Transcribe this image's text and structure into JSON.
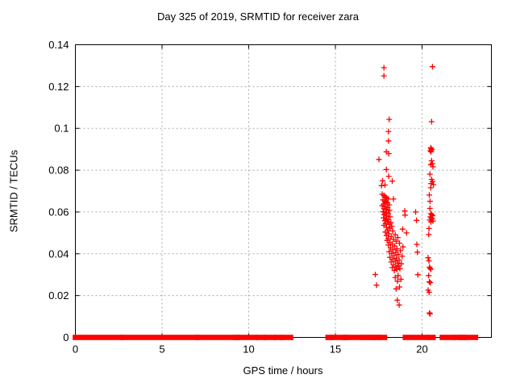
{
  "chart_data": {
    "type": "scatter",
    "title": "Day 325 of 2019, SRMTID for receiver zara",
    "xlabel": "GPS time / hours",
    "ylabel": "SRMTID / TECUs",
    "xlim": [
      0,
      24
    ],
    "ylim": [
      0,
      0.14
    ],
    "xticks": [
      0,
      5,
      10,
      15,
      20
    ],
    "xtick_labels": [
      "0",
      "5",
      "10",
      "15",
      "20"
    ],
    "yticks": [
      0,
      0.02,
      0.04,
      0.06,
      0.08,
      0.1,
      0.12,
      0.14
    ],
    "ytick_labels": [
      "0",
      "0.02",
      "0.04",
      "0.06",
      "0.08",
      "0.1",
      "0.12",
      "0.14"
    ],
    "grid": true,
    "legend": "none",
    "marker": "plus",
    "marker_color": "#ff0000",
    "grid_color": "#ababab",
    "border_color": "#000000",
    "baseline_value": 0,
    "baseline_segments_hours": [
      [
        0.0,
        2.66
      ],
      [
        2.76,
        6.98
      ],
      [
        7.08,
        9.17
      ],
      [
        9.25,
        9.36
      ],
      [
        9.49,
        10.42
      ],
      [
        10.55,
        10.88
      ],
      [
        11.02,
        11.44
      ],
      [
        11.58,
        11.83
      ],
      [
        11.94,
        12.41
      ],
      [
        14.58,
        14.72
      ],
      [
        14.83,
        15.45
      ],
      [
        15.52,
        15.6
      ],
      [
        15.63,
        16.53
      ],
      [
        16.63,
        16.78
      ],
      [
        16.88,
        17.05
      ],
      [
        17.16,
        17.28
      ],
      [
        17.37,
        17.53
      ],
      [
        17.62,
        17.83
      ],
      [
        19.04,
        20.32
      ],
      [
        20.45,
        20.63
      ],
      [
        21.17,
        21.79
      ],
      [
        21.95,
        22.18
      ],
      [
        22.28,
        22.42
      ],
      [
        22.49,
        23.08
      ]
    ],
    "points": [
      [
        17.8,
        0.129
      ],
      [
        17.8,
        0.1251
      ],
      [
        18.1,
        0.1043
      ],
      [
        18.06,
        0.0985
      ],
      [
        18.06,
        0.094
      ],
      [
        17.94,
        0.0888
      ],
      [
        18.08,
        0.0879
      ],
      [
        17.51,
        0.0851
      ],
      [
        17.94,
        0.0803
      ],
      [
        18.08,
        0.0771
      ],
      [
        18.28,
        0.0748
      ],
      [
        17.72,
        0.0749
      ],
      [
        17.86,
        0.0729
      ],
      [
        17.66,
        0.0726
      ],
      [
        17.7,
        0.0685
      ],
      [
        17.8,
        0.0679
      ],
      [
        17.88,
        0.0673
      ],
      [
        17.96,
        0.0668
      ],
      [
        18.04,
        0.0662
      ],
      [
        18.35,
        0.0662
      ],
      [
        17.74,
        0.0658
      ],
      [
        17.84,
        0.0652
      ],
      [
        17.92,
        0.0647
      ],
      [
        18.0,
        0.0643
      ],
      [
        17.78,
        0.0638
      ],
      [
        18.1,
        0.0634
      ],
      [
        17.7,
        0.063
      ],
      [
        17.88,
        0.0626
      ],
      [
        18.02,
        0.0621
      ],
      [
        17.8,
        0.0616
      ],
      [
        17.95,
        0.0612
      ],
      [
        18.12,
        0.0608
      ],
      [
        19.0,
        0.0605
      ],
      [
        17.75,
        0.0601
      ],
      [
        19.63,
        0.06
      ],
      [
        17.9,
        0.0596
      ],
      [
        18.05,
        0.0592
      ],
      [
        17.82,
        0.0587
      ],
      [
        19.02,
        0.0585
      ],
      [
        17.95,
        0.0581
      ],
      [
        18.15,
        0.0577
      ],
      [
        17.78,
        0.0572
      ],
      [
        17.92,
        0.0568
      ],
      [
        19.68,
        0.056
      ],
      [
        18.06,
        0.0563
      ],
      [
        17.85,
        0.0558
      ],
      [
        18.0,
        0.0554
      ],
      [
        18.2,
        0.0549
      ],
      [
        17.9,
        0.0545
      ],
      [
        18.1,
        0.054
      ],
      [
        17.8,
        0.0536
      ],
      [
        18.25,
        0.0531
      ],
      [
        17.95,
        0.0527
      ],
      [
        18.15,
        0.0522
      ],
      [
        18.88,
        0.0518
      ],
      [
        18.02,
        0.0513
      ],
      [
        18.3,
        0.0509
      ],
      [
        17.88,
        0.0504
      ],
      [
        19.1,
        0.05
      ],
      [
        18.08,
        0.0496
      ],
      [
        18.45,
        0.0491
      ],
      [
        17.95,
        0.0487
      ],
      [
        18.22,
        0.0482
      ],
      [
        18.6,
        0.0478
      ],
      [
        18.05,
        0.0473
      ],
      [
        18.35,
        0.0469
      ],
      [
        17.98,
        0.0464
      ],
      [
        18.5,
        0.046
      ],
      [
        18.15,
        0.0455
      ],
      [
        18.7,
        0.0451
      ],
      [
        18.28,
        0.0446
      ],
      [
        19.7,
        0.0445
      ],
      [
        18.05,
        0.0442
      ],
      [
        18.42,
        0.0437
      ],
      [
        18.9,
        0.0433
      ],
      [
        18.18,
        0.0428
      ],
      [
        18.55,
        0.0424
      ],
      [
        18.32,
        0.0419
      ],
      [
        18.75,
        0.0415
      ],
      [
        19.73,
        0.0408
      ],
      [
        18.1,
        0.041
      ],
      [
        18.48,
        0.0406
      ],
      [
        18.25,
        0.0401
      ],
      [
        18.62,
        0.0397
      ],
      [
        18.38,
        0.0392
      ],
      [
        18.85,
        0.0388
      ],
      [
        18.15,
        0.0383
      ],
      [
        18.52,
        0.0379
      ],
      [
        18.3,
        0.0374
      ],
      [
        18.68,
        0.037
      ],
      [
        18.45,
        0.0365
      ],
      [
        18.22,
        0.0361
      ],
      [
        18.58,
        0.0356
      ],
      [
        18.8,
        0.0352
      ],
      [
        18.35,
        0.0347
      ],
      [
        18.65,
        0.0343
      ],
      [
        18.48,
        0.0338
      ],
      [
        18.28,
        0.0334
      ],
      [
        18.72,
        0.0329
      ],
      [
        18.55,
        0.0325
      ],
      [
        18.4,
        0.032
      ],
      [
        17.3,
        0.0301
      ],
      [
        19.76,
        0.03
      ],
      [
        18.62,
        0.0296
      ],
      [
        18.45,
        0.0287
      ],
      [
        18.78,
        0.0278
      ],
      [
        18.58,
        0.0269
      ],
      [
        17.37,
        0.025
      ],
      [
        18.7,
        0.0241
      ],
      [
        18.5,
        0.0232
      ],
      [
        18.57,
        0.0178
      ],
      [
        18.68,
        0.0155
      ],
      [
        20.6,
        0.1295
      ],
      [
        20.55,
        0.1032
      ],
      [
        20.5,
        0.0907
      ],
      [
        20.53,
        0.0902
      ],
      [
        20.56,
        0.0898
      ],
      [
        20.48,
        0.0893
      ],
      [
        20.52,
        0.0888
      ],
      [
        20.55,
        0.0845
      ],
      [
        20.6,
        0.0831
      ],
      [
        20.5,
        0.0826
      ],
      [
        20.63,
        0.0816
      ],
      [
        20.45,
        0.0781
      ],
      [
        20.55,
        0.0756
      ],
      [
        20.6,
        0.0746
      ],
      [
        20.52,
        0.0736
      ],
      [
        20.66,
        0.0731
      ],
      [
        20.5,
        0.0716
      ],
      [
        20.42,
        0.0681
      ],
      [
        20.46,
        0.0651
      ],
      [
        20.45,
        0.0617
      ],
      [
        20.5,
        0.0592
      ],
      [
        20.56,
        0.0587
      ],
      [
        20.61,
        0.0582
      ],
      [
        20.48,
        0.0577
      ],
      [
        20.53,
        0.0572
      ],
      [
        20.58,
        0.0567
      ],
      [
        20.44,
        0.0562
      ],
      [
        20.63,
        0.0557
      ],
      [
        20.51,
        0.0552
      ],
      [
        20.4,
        0.0521
      ],
      [
        20.38,
        0.0492
      ],
      [
        20.35,
        0.0381
      ],
      [
        20.4,
        0.0366
      ],
      [
        20.43,
        0.0336
      ],
      [
        20.46,
        0.033
      ],
      [
        20.51,
        0.0326
      ],
      [
        20.38,
        0.0296
      ],
      [
        20.42,
        0.0266
      ],
      [
        20.48,
        0.0262
      ],
      [
        20.35,
        0.0226
      ],
      [
        20.41,
        0.0216
      ],
      [
        20.43,
        0.0117
      ],
      [
        20.46,
        0.0113
      ]
    ]
  }
}
